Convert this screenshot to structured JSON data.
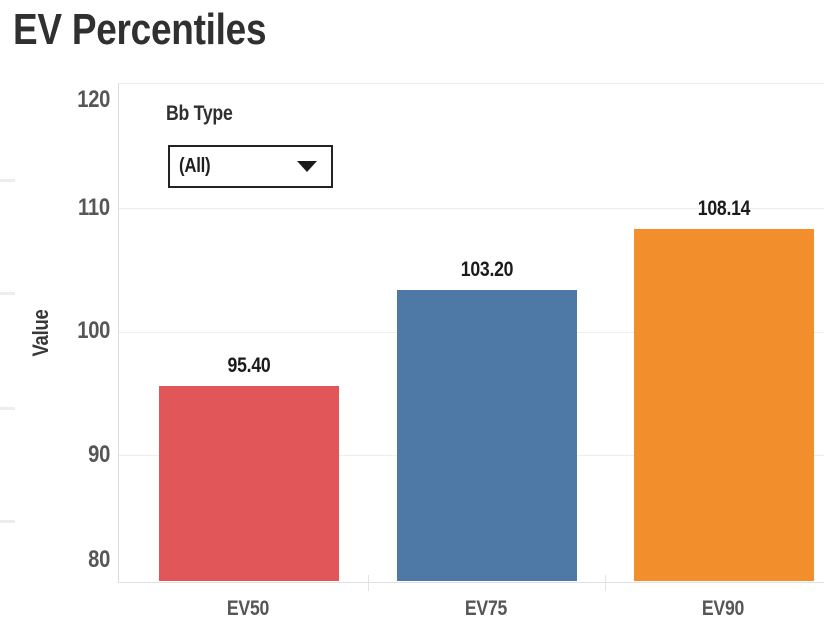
{
  "chart_data": {
    "type": "bar",
    "title": "EV Percentiles",
    "categories": [
      "EV50",
      "EV75",
      "EV90"
    ],
    "values": [
      95.4,
      103.2,
      108.14
    ],
    "value_labels": [
      "95.40",
      "103.20",
      "108.14"
    ],
    "bar_colors": [
      "#E15759",
      "#4E79A7",
      "#F28E2B"
    ],
    "xlabel": "",
    "ylabel": "Value",
    "yticks": [
      80,
      90,
      100,
      110,
      120
    ],
    "ylim": [
      79.6,
      120.5
    ],
    "grid": "horizontal",
    "legend": "none",
    "grid_color": "#ededed",
    "axis_label_color": "#565656",
    "value_label_color": "#1b1b1b"
  },
  "filter": {
    "label": "Bb Type",
    "value": "(All)",
    "icon": "caret-down-icon"
  }
}
